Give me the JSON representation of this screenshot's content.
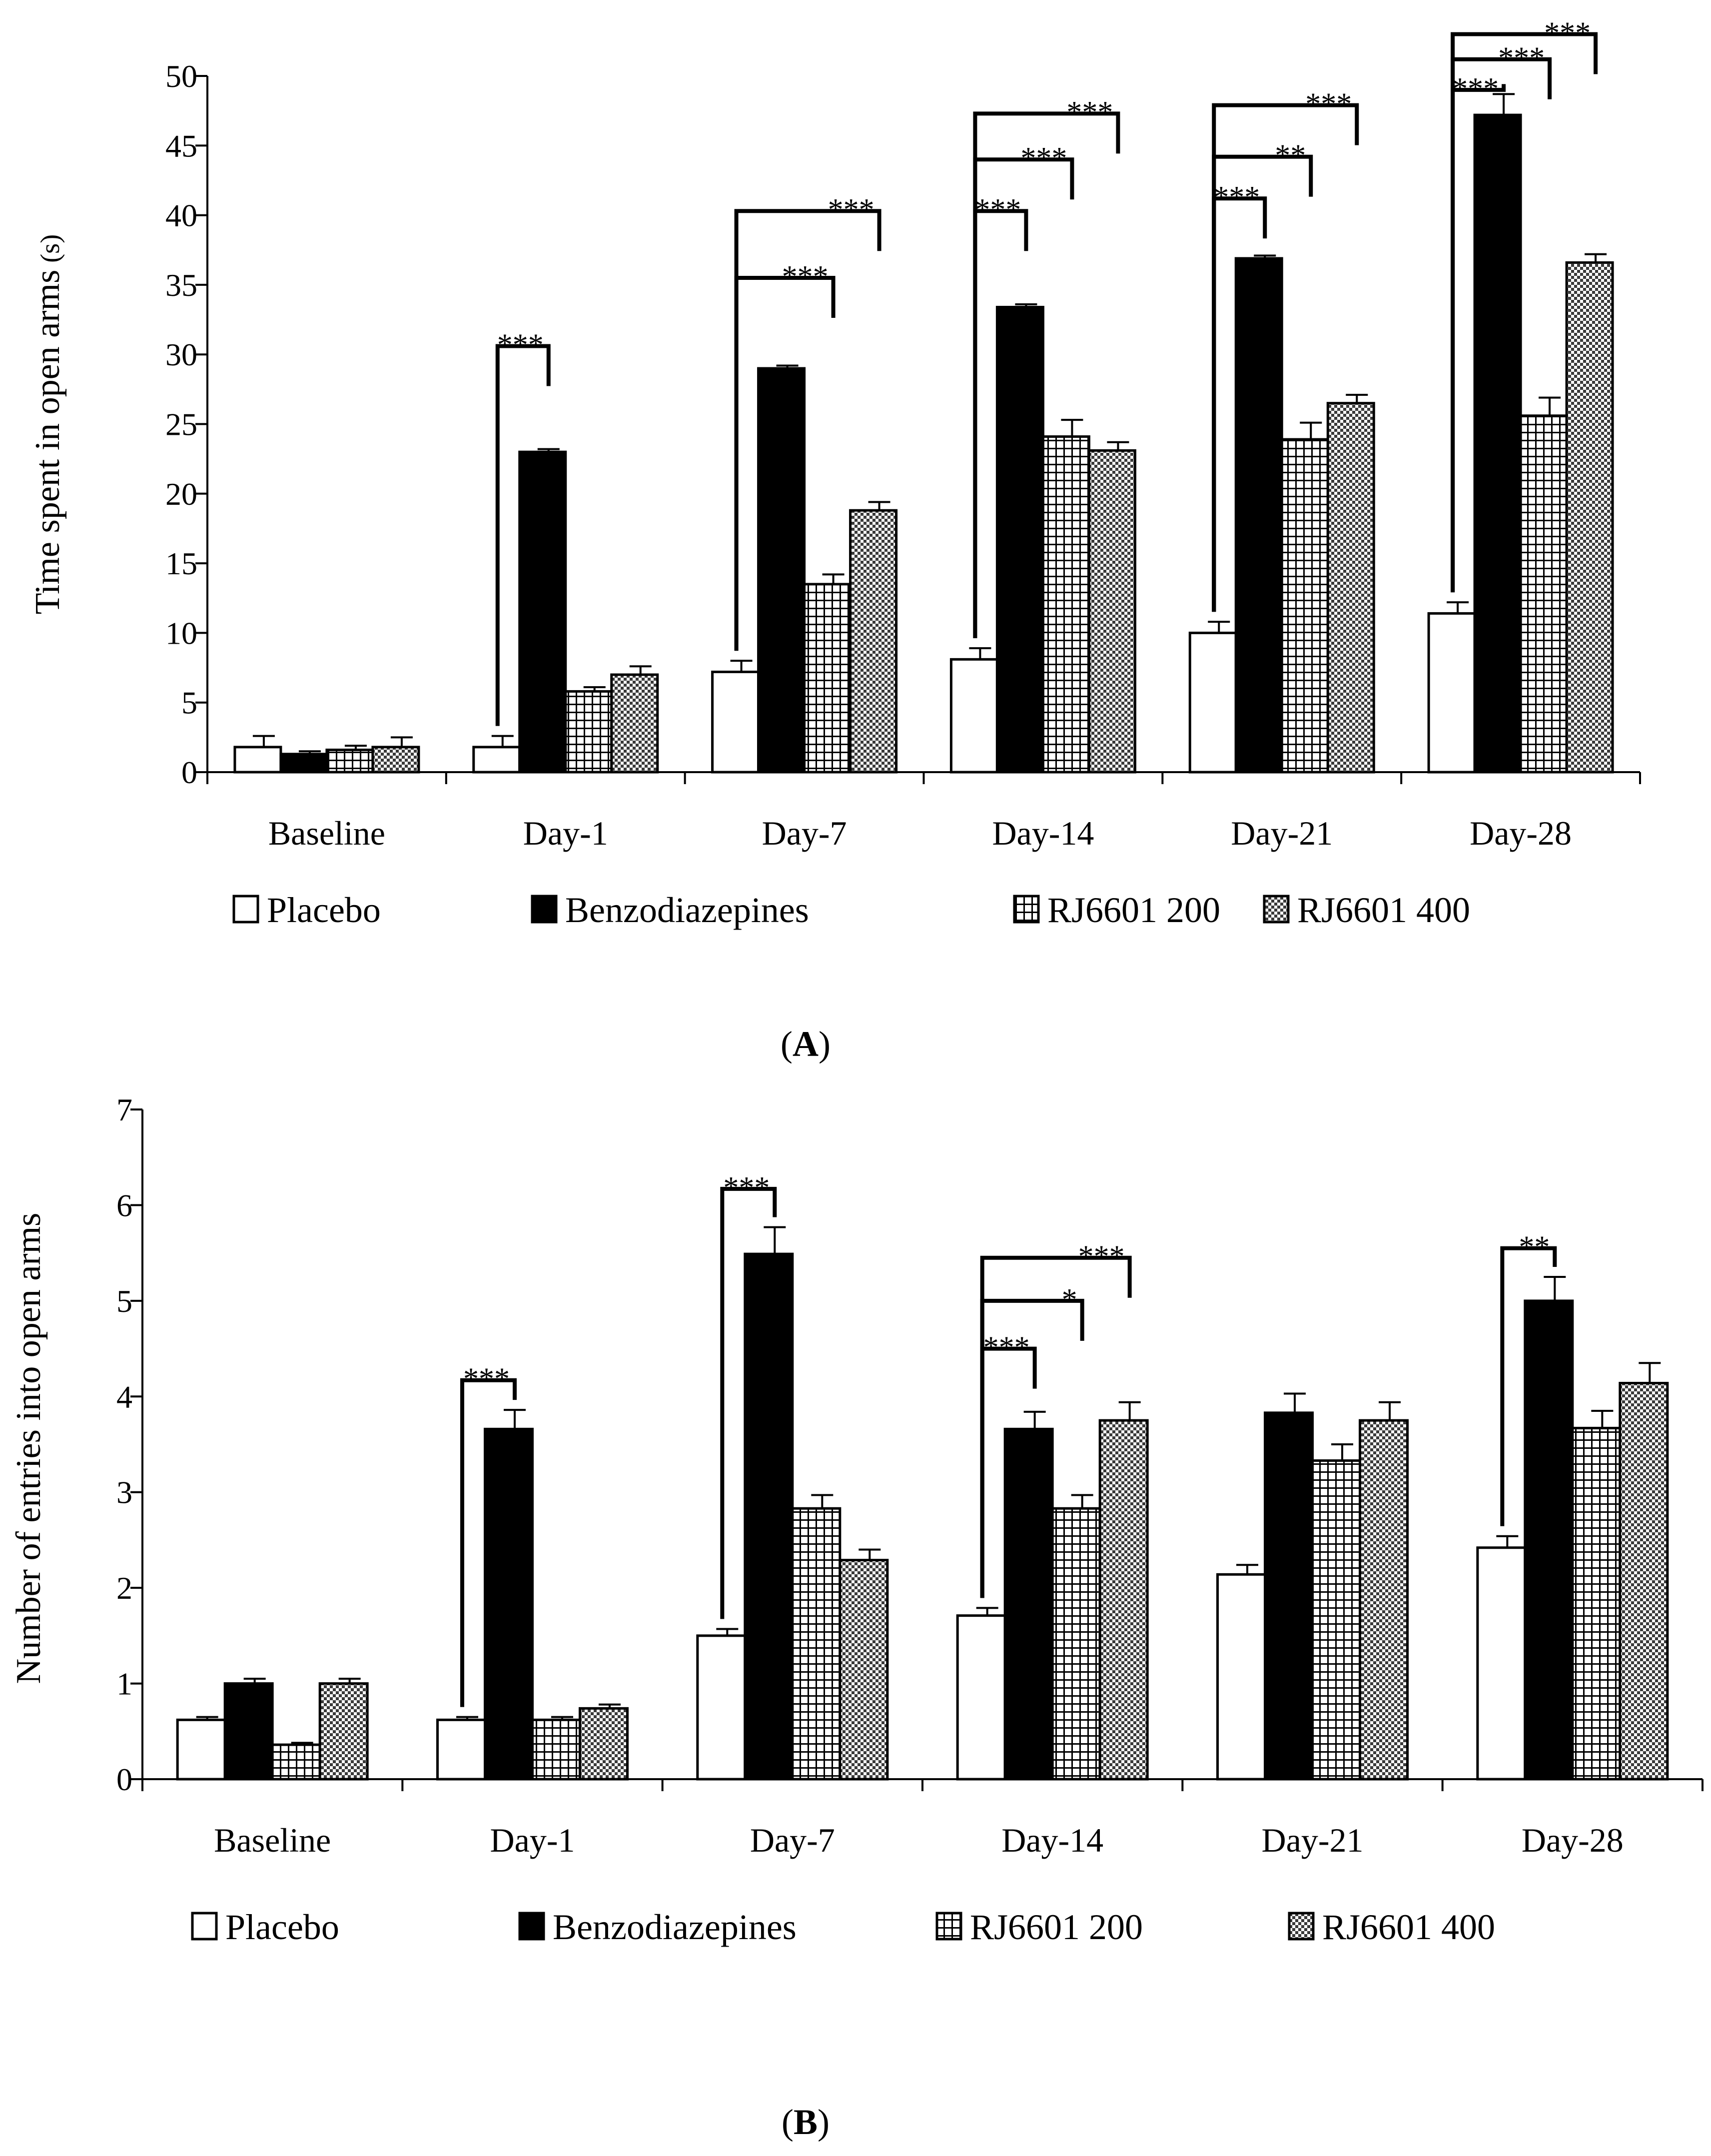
{
  "colors": {
    "placebo": "#ffffff",
    "benzodiazepines": "#000000",
    "rj200": "hatch",
    "rj400": "checker"
  },
  "chart_data": [
    {
      "type": "bar",
      "panel_label": "A",
      "panel_caption_open": "(",
      "panel_caption_close": ")",
      "title": "",
      "xlabel": "",
      "ylabel": "Time spent in open arms",
      "ylabel_unit": "(s)",
      "ylim": [
        0,
        50
      ],
      "yticks": [
        0,
        5,
        10,
        15,
        20,
        25,
        30,
        35,
        40,
        45,
        50
      ],
      "categories": [
        "Baseline",
        "Day-1",
        "Day-7",
        "Day-14",
        "Day-21",
        "Day-28"
      ],
      "series": [
        {
          "name": "Placebo",
          "pattern": "white",
          "values": [
            1.8,
            1.8,
            7.2,
            8.1,
            10.0,
            11.4
          ],
          "errors": [
            0.8,
            0.8,
            0.8,
            0.8,
            0.8,
            0.8
          ]
        },
        {
          "name": "Benzodiazepines",
          "pattern": "black",
          "values": [
            1.3,
            23.0,
            29.0,
            33.4,
            36.9,
            47.2
          ],
          "errors": [
            0.2,
            0.2,
            0.2,
            0.2,
            0.2,
            1.5
          ]
        },
        {
          "name": "RJ6601 200",
          "pattern": "grid",
          "values": [
            1.6,
            5.8,
            13.5,
            24.1,
            23.9,
            25.6
          ],
          "errors": [
            0.3,
            0.3,
            0.7,
            1.2,
            1.2,
            1.3
          ]
        },
        {
          "name": "RJ6601 400",
          "pattern": "checker",
          "values": [
            1.8,
            7.0,
            18.8,
            23.1,
            26.5,
            36.6
          ],
          "errors": [
            0.7,
            0.6,
            0.6,
            0.6,
            0.6,
            0.6
          ]
        }
      ],
      "annotations": [
        {
          "category": 1,
          "from": 0,
          "to": 1,
          "level": 30.6,
          "text": "***"
        },
        {
          "category": 2,
          "from": 0,
          "to": 2,
          "level": 35.5,
          "text": "***"
        },
        {
          "category": 2,
          "from": 0,
          "to": 3,
          "level": 40.3,
          "text": "***"
        },
        {
          "category": 3,
          "from": 0,
          "to": 1,
          "level": 40.3,
          "text": "***"
        },
        {
          "category": 3,
          "from": 0,
          "to": 2,
          "level": 44.0,
          "text": "***"
        },
        {
          "category": 3,
          "from": 0,
          "to": 3,
          "level": 47.3,
          "text": "***"
        },
        {
          "category": 4,
          "from": 0,
          "to": 1,
          "level": 41.2,
          "text": "***"
        },
        {
          "category": 4,
          "from": 0,
          "to": 2,
          "level": 44.2,
          "text": "**"
        },
        {
          "category": 4,
          "from": 0,
          "to": 3,
          "level": 47.9,
          "text": "***"
        },
        {
          "category": 5,
          "from": 0,
          "to": 1,
          "level": 49.0,
          "text": "***"
        },
        {
          "category": 5,
          "from": 0,
          "to": 2,
          "level": 51.2,
          "text": "***"
        },
        {
          "category": 5,
          "from": 0,
          "to": 3,
          "level": 53.0,
          "text": "***"
        }
      ],
      "legend": [
        "Placebo",
        "Benzodiazepines",
        "RJ6601 200",
        "RJ6601 400"
      ],
      "legend_position": "bottom"
    },
    {
      "type": "bar",
      "panel_label": "B",
      "panel_caption_open": "(",
      "panel_caption_close": ")",
      "title": "",
      "xlabel": "",
      "ylabel": "Number of entries into open arms",
      "ylabel_unit": "",
      "ylim": [
        0,
        7
      ],
      "yticks": [
        0,
        1,
        2,
        3,
        4,
        5,
        6,
        7
      ],
      "categories": [
        "Baseline",
        "Day-1",
        "Day-7",
        "Day-14",
        "Day-21",
        "Day-28"
      ],
      "series": [
        {
          "name": "Placebo",
          "pattern": "white",
          "values": [
            0.62,
            0.62,
            1.5,
            1.71,
            2.14,
            2.42
          ],
          "errors": [
            0.03,
            0.03,
            0.07,
            0.08,
            0.1,
            0.12
          ]
        },
        {
          "name": "Benzodiazepines",
          "pattern": "black",
          "values": [
            1.0,
            3.66,
            5.49,
            3.66,
            3.83,
            5.0
          ],
          "errors": [
            0.05,
            0.2,
            0.28,
            0.18,
            0.2,
            0.25
          ]
        },
        {
          "name": "RJ6601 200",
          "pattern": "grid",
          "values": [
            0.36,
            0.62,
            2.83,
            2.83,
            3.33,
            3.67
          ],
          "errors": [
            0.02,
            0.03,
            0.14,
            0.14,
            0.17,
            0.18
          ]
        },
        {
          "name": "RJ6601 400",
          "pattern": "checker",
          "values": [
            1.0,
            0.74,
            2.29,
            3.75,
            3.75,
            4.14
          ],
          "errors": [
            0.05,
            0.04,
            0.11,
            0.19,
            0.19,
            0.21
          ]
        }
      ],
      "annotations": [
        {
          "category": 1,
          "from": 0,
          "to": 1,
          "level": 4.17,
          "text": "***"
        },
        {
          "category": 2,
          "from": 0,
          "to": 1,
          "level": 6.17,
          "text": "***"
        },
        {
          "category": 3,
          "from": 0,
          "to": 1,
          "level": 4.5,
          "text": "***"
        },
        {
          "category": 3,
          "from": 0,
          "to": 2,
          "level": 5.0,
          "text": "*"
        },
        {
          "category": 3,
          "from": 0,
          "to": 3,
          "level": 5.45,
          "text": "***"
        },
        {
          "category": 5,
          "from": 0,
          "to": 1,
          "level": 5.55,
          "text": "**"
        }
      ],
      "legend": [
        "Placebo",
        "Benzodiazepines",
        "RJ6601 200",
        "RJ6601 400"
      ],
      "legend_position": "bottom"
    }
  ]
}
